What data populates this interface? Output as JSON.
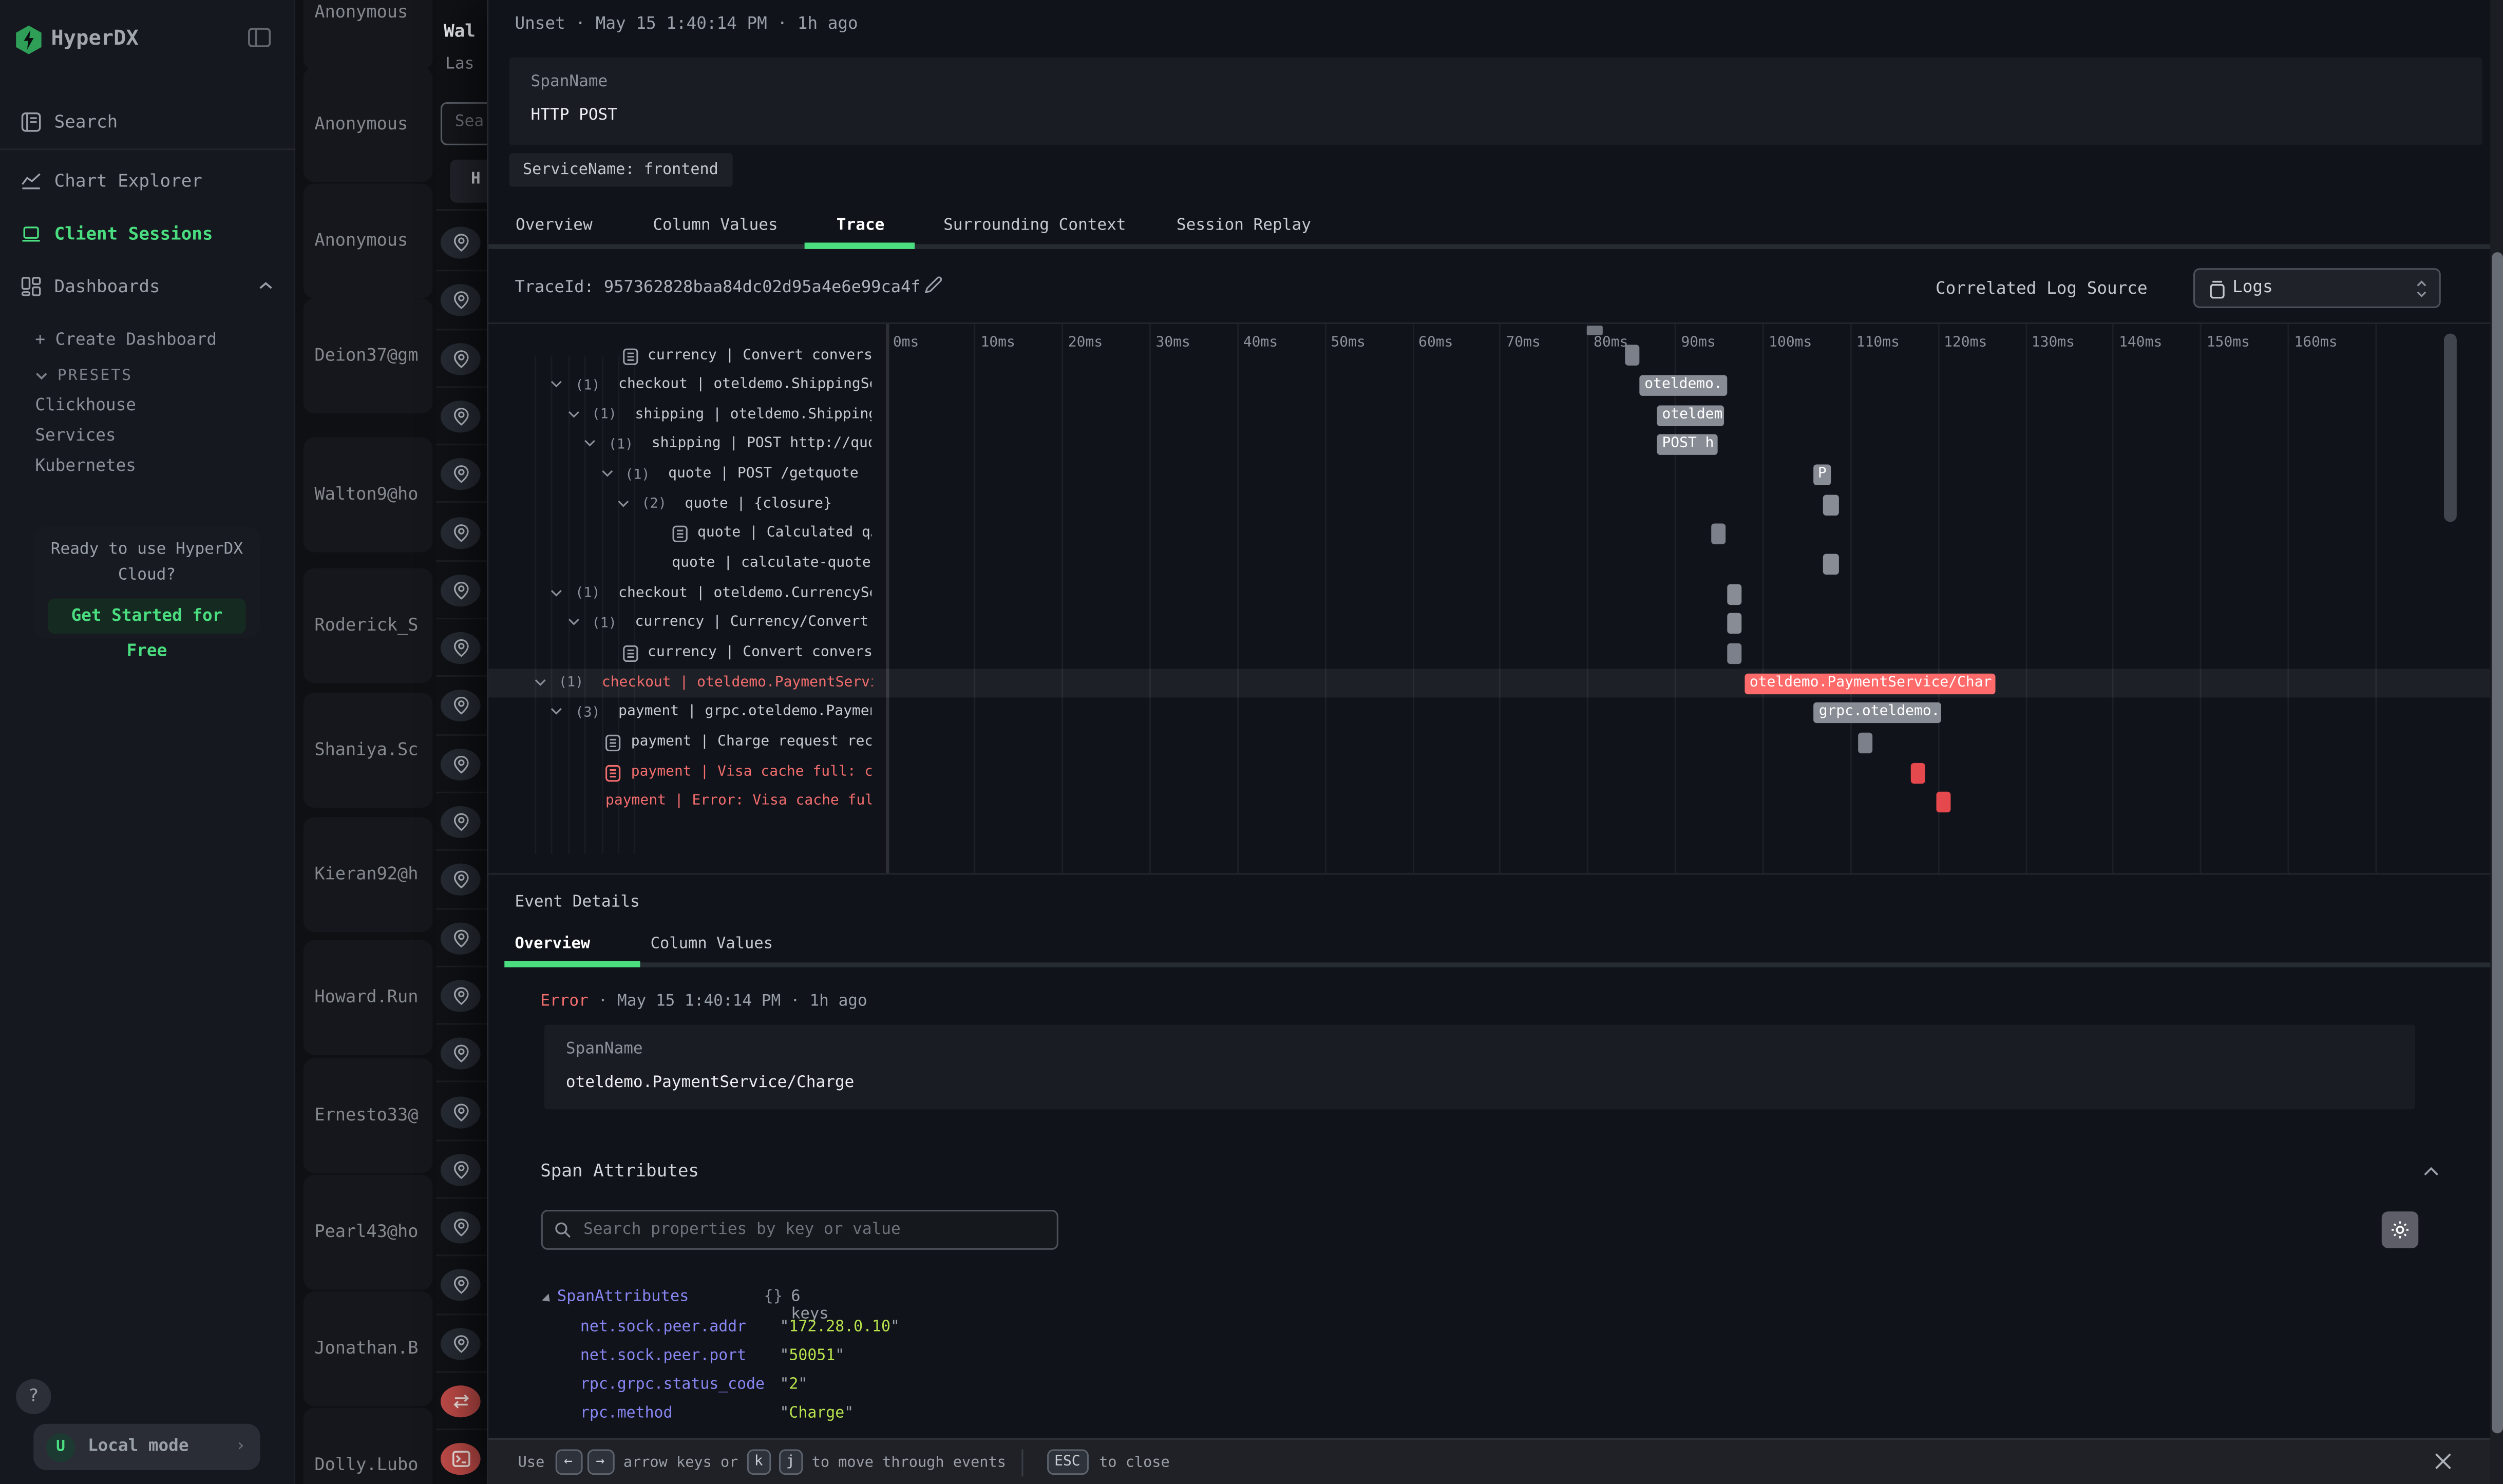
{
  "colors": {
    "accent": "#4ade80",
    "error_text": "#f26d6d",
    "error_bar": "#ff6b6b",
    "error_marker": "#e5484d",
    "bar_gray": "#878c95",
    "marker_gray": "#7b808a",
    "key_purple": "#8886f2",
    "value_lime": "#b8e34c"
  },
  "sidebar": {
    "logo": "HyperDX",
    "nav": [
      {
        "label": "Search"
      },
      {
        "label": "Chart Explorer"
      },
      {
        "label": "Client Sessions",
        "active": true
      },
      {
        "label": "Dashboards"
      }
    ],
    "create_dashboard": "+ Create Dashboard",
    "presets_label": "PRESETS",
    "presets": [
      "Clickhouse",
      "Services",
      "Kubernetes"
    ],
    "cloud_line1": "Ready to use HyperDX",
    "cloud_line2": "Cloud?",
    "cloud_button": "Get Started for Free",
    "help": "?",
    "workspace": {
      "avatar": "U",
      "label": "Local mode"
    }
  },
  "session_list": {
    "names": [
      "Anonymous",
      "Anonymous",
      "Anonymous",
      "Deion37@gm",
      "Walton9@ho",
      "Roderick_S",
      "Shaniya.Sc",
      "Kieran92@h",
      "Howard.Run",
      "Ernesto33@",
      "Pearl43@ho",
      "Jonathan.B",
      "Dolly.Lubo"
    ]
  },
  "session_panel": {
    "title": "Wal",
    "subtitle": "Las",
    "search_placeholder": "Sea",
    "button": "H",
    "events": [
      "pin",
      "pin",
      "pin",
      "pin",
      "pin",
      "pin",
      "pin",
      "pin",
      "pin",
      "pin",
      "pin",
      "pin",
      "pin",
      "pin",
      "pin",
      "pin",
      "pin",
      "pin",
      "pin",
      "pin",
      "swap",
      "terminal"
    ]
  },
  "trace_panel": {
    "status": "Unset",
    "sep": "·",
    "time": "May 15 1:40:14 PM",
    "ago": "1h ago",
    "span_name_label": "SpanName",
    "span_name_value": "HTTP POST",
    "service_badge": "ServiceName: frontend",
    "tabs": [
      {
        "label": "Overview"
      },
      {
        "label": "Column Values"
      },
      {
        "label": "Trace",
        "active": true
      },
      {
        "label": "Surrounding Context"
      },
      {
        "label": "Session Replay"
      }
    ],
    "trace_id": "TraceId: 957362828baa84dc02d95a4e6e99ca4f",
    "correlated_label": "Correlated Log Source",
    "log_source": "Logs"
  },
  "waterfall": {
    "ticks": [
      "0ms",
      "10ms",
      "20ms",
      "30ms",
      "40ms",
      "50ms",
      "60ms",
      "70ms",
      "80ms",
      "90ms",
      "100ms",
      "110ms",
      "120ms",
      "130ms",
      "140ms",
      "150ms",
      "160ms"
    ],
    "rows": [
      {
        "depth": 3,
        "kind": "event",
        "label": "currency | Convert convers…",
        "bar": {
          "type": "marker",
          "start": 84.3
        }
      },
      {
        "depth": 1,
        "kind": "expand",
        "count": "(1)",
        "label": "checkout | oteldemo.ShippingSe…",
        "bar": {
          "type": "bar",
          "start": 86,
          "end": 96,
          "label": "oteldemo."
        }
      },
      {
        "depth": 2,
        "kind": "expand",
        "count": "(1)",
        "label": "shipping | oteldemo.Shipping…",
        "bar": {
          "type": "bar",
          "start": 88,
          "end": 95.7,
          "label": "oteldem"
        }
      },
      {
        "depth": 3,
        "kind": "expand",
        "count": "(1)",
        "label": "shipping | POST http://quo…",
        "bar": {
          "type": "bar",
          "start": 88,
          "end": 94.9,
          "label": "POST h"
        }
      },
      {
        "depth": 4,
        "kind": "expand",
        "count": "(1)",
        "label": "quote | POST /getquote",
        "bar": {
          "type": "bar",
          "start": 105.8,
          "end": 107.8,
          "label": "P"
        }
      },
      {
        "depth": 5,
        "kind": "expand",
        "count": "(2)",
        "label": "quote | {closure}",
        "bar": {
          "type": "bar",
          "start": 106.9,
          "end": 108.7,
          "label": ""
        }
      },
      {
        "depth": 6,
        "kind": "event",
        "label": "quote | Calculated q…",
        "bar": {
          "type": "marker",
          "start": 94.1
        }
      },
      {
        "depth": 6,
        "kind": "plain",
        "label": "quote | calculate-quote",
        "bar": {
          "type": "bar",
          "start": 106.9,
          "end": 108.7,
          "label": ""
        }
      },
      {
        "depth": 1,
        "kind": "expand",
        "count": "(1)",
        "label": "checkout | oteldemo.CurrencySe…",
        "bar": {
          "type": "bar",
          "start": 95.9,
          "end": 97.7,
          "label": ""
        }
      },
      {
        "depth": 2,
        "kind": "expand",
        "count": "(1)",
        "label": "currency | Currency/Convert",
        "bar": {
          "type": "bar",
          "start": 95.9,
          "end": 97.7,
          "label": ""
        }
      },
      {
        "depth": 3,
        "kind": "event",
        "label": "currency | Convert convers…",
        "bar": {
          "type": "marker",
          "start": 95.9
        }
      },
      {
        "depth": 0,
        "kind": "expand",
        "count": "(1)",
        "error": true,
        "selected": true,
        "label": "checkout | oteldemo.PaymentServi…",
        "bar": {
          "type": "bar",
          "start": 98,
          "end": 126.6,
          "label": "oteldemo.PaymentService/Char",
          "error": true
        }
      },
      {
        "depth": 1,
        "kind": "expand",
        "count": "(3)",
        "label": "payment | grpc.oteldemo.Paymen…",
        "bar": {
          "type": "bar",
          "start": 105.9,
          "end": 120.5,
          "label": "grpc.oteldemo."
        }
      },
      {
        "depth": 2,
        "kind": "event",
        "label": "payment | Charge request rec…",
        "bar": {
          "type": "marker",
          "start": 110.9
        }
      },
      {
        "depth": 2,
        "kind": "event",
        "error": true,
        "label": "payment | Visa cache full: c…",
        "bar": {
          "type": "marker",
          "start": 116.9,
          "error": true
        }
      },
      {
        "depth": 2,
        "kind": "plain",
        "error": true,
        "label": "payment | Error: Visa cache ful…",
        "bar": {
          "type": "marker",
          "start": 119.9,
          "error": true
        }
      }
    ]
  },
  "event_details": {
    "title": "Event Details",
    "tabs": [
      {
        "label": "Overview",
        "active": true
      },
      {
        "label": "Column Values"
      }
    ],
    "status": "Error",
    "sep": "·",
    "time": "May 15 1:40:14 PM",
    "ago": "1h ago",
    "span_name_label": "SpanName",
    "span_name_value": "oteldemo.PaymentService/Charge"
  },
  "span_attributes": {
    "title": "Span Attributes",
    "search_placeholder": "Search properties by key or value",
    "root": "SpanAttributes",
    "braces": "{}",
    "keys_badge": "6 keys",
    "attrs": [
      {
        "key": "net.sock.peer.addr",
        "value": "172.28.0.10"
      },
      {
        "key": "net.sock.peer.port",
        "value": "50051"
      },
      {
        "key": "rpc.grpc.status_code",
        "value": "2"
      },
      {
        "key": "rpc.method",
        "value": "Charge"
      }
    ]
  },
  "footer": {
    "use": "Use",
    "key_left": "←",
    "key_right": "→",
    "arrow_text": "arrow keys or",
    "key_k": "k",
    "key_j": "j",
    "move_text": "to move through events",
    "key_esc": "ESC",
    "close_text": "to close"
  }
}
